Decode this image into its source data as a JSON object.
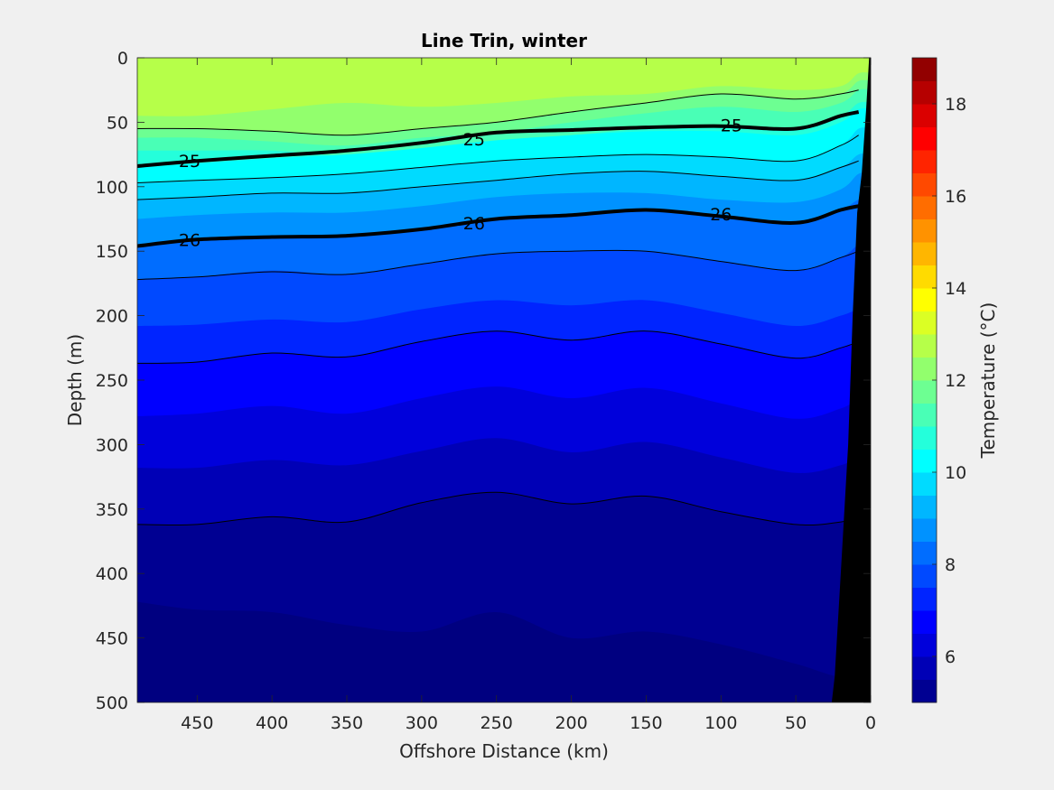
{
  "chart_data": {
    "type": "heatmap",
    "subtype": "filled-contour section",
    "title": "Line Trin, winter",
    "xlabel": "Offshore Distance (km)",
    "ylabel": "Depth (m)",
    "colorbar_label": "Temperature (°C)",
    "x_reversed": true,
    "y_reversed": true,
    "xlim": [
      490,
      0
    ],
    "ylim": [
      0,
      500
    ],
    "x_ticks": [
      450,
      400,
      350,
      300,
      250,
      200,
      150,
      100,
      50,
      0
    ],
    "y_ticks": [
      0,
      50,
      100,
      150,
      200,
      250,
      300,
      350,
      400,
      450,
      500
    ],
    "colorbar_range": [
      5,
      19
    ],
    "colorbar_ticks": [
      6,
      8,
      10,
      12,
      14,
      16,
      18
    ],
    "colormap": "jet",
    "color_levels": 28,
    "background_color": "#f0f0f0",
    "bathymetry_color": "#000000",
    "temperature_bands": [
      {
        "temp": 12.75,
        "x": [
          490,
          450,
          400,
          350,
          300,
          250,
          200,
          150,
          100,
          50,
          20,
          8
        ],
        "top": [
          0,
          0,
          0,
          0,
          0,
          0,
          0,
          0,
          0,
          0,
          0,
          0
        ]
      },
      {
        "temp": 12.25,
        "x": [
          490,
          450,
          400,
          350,
          300,
          250,
          200,
          150,
          100,
          50,
          20,
          8
        ],
        "top": [
          45,
          45,
          40,
          35,
          38,
          35,
          30,
          28,
          22,
          25,
          22,
          12
        ]
      },
      {
        "temp": 11.75,
        "x": [
          490,
          450,
          400,
          350,
          300,
          250,
          200,
          150,
          100,
          50,
          20,
          8
        ],
        "top": [
          55,
          55,
          57,
          60,
          55,
          50,
          42,
          35,
          28,
          32,
          28,
          18
        ]
      },
      {
        "temp": 11.25,
        "x": [
          490,
          450,
          400,
          350,
          300,
          250,
          200,
          150,
          100,
          50,
          20,
          8
        ],
        "top": [
          62,
          62,
          65,
          68,
          62,
          58,
          50,
          43,
          38,
          42,
          35,
          25
        ]
      },
      {
        "temp": 10.75,
        "x": [
          490,
          450,
          400,
          350,
          300,
          250,
          200,
          150,
          100,
          50,
          20,
          8
        ],
        "top": [
          72,
          72,
          72,
          76,
          70,
          66,
          60,
          55,
          52,
          55,
          45,
          35
        ]
      },
      {
        "temp": 10.25,
        "x": [
          490,
          450,
          400,
          350,
          300,
          250,
          200,
          150,
          100,
          50,
          20,
          8
        ],
        "top": [
          85,
          82,
          78,
          75,
          70,
          64,
          60,
          57,
          57,
          60,
          50,
          40
        ]
      },
      {
        "temp": 9.75,
        "x": [
          490,
          450,
          400,
          350,
          300,
          250,
          200,
          150,
          100,
          50,
          20,
          8
        ],
        "top": [
          97,
          95,
          93,
          90,
          85,
          80,
          77,
          75,
          77,
          80,
          68,
          55
        ]
      },
      {
        "temp": 9.25,
        "x": [
          490,
          450,
          400,
          350,
          300,
          250,
          200,
          150,
          100,
          50,
          20,
          8
        ],
        "top": [
          110,
          108,
          105,
          105,
          100,
          95,
          90,
          88,
          92,
          95,
          85,
          75
        ]
      },
      {
        "temp": 8.75,
        "x": [
          490,
          450,
          400,
          350,
          300,
          250,
          200,
          150,
          100,
          50,
          20,
          8
        ],
        "top": [
          125,
          122,
          120,
          120,
          115,
          108,
          105,
          105,
          110,
          112,
          102,
          90
        ]
      },
      {
        "temp": 8.25,
        "x": [
          490,
          450,
          400,
          350,
          300,
          250,
          200,
          150,
          100,
          50,
          20,
          8
        ],
        "top": [
          145,
          141,
          139,
          138,
          133,
          125,
          122,
          118,
          123,
          128,
          118,
          110
        ]
      },
      {
        "temp": 7.75,
        "x": [
          490,
          450,
          400,
          350,
          300,
          250,
          200,
          150,
          100,
          50,
          20,
          8
        ],
        "top": [
          172,
          170,
          165,
          168,
          160,
          152,
          150,
          150,
          158,
          165,
          155,
          145
        ]
      },
      {
        "temp": 7.25,
        "x": [
          490,
          450,
          400,
          350,
          300,
          250,
          200,
          150,
          100,
          50,
          20,
          8
        ],
        "top": [
          208,
          207,
          203,
          205,
          195,
          188,
          192,
          188,
          198,
          208,
          200,
          195
        ]
      },
      {
        "temp": 6.75,
        "x": [
          490,
          450,
          400,
          350,
          300,
          250,
          200,
          150,
          100,
          50,
          20,
          8
        ],
        "top": [
          237,
          236,
          229,
          232,
          220,
          212,
          219,
          212,
          222,
          233,
          225,
          220
        ]
      },
      {
        "temp": 6.25,
        "x": [
          490,
          450,
          400,
          350,
          300,
          250,
          200,
          150,
          100,
          50,
          20,
          8
        ],
        "top": [
          278,
          276,
          270,
          276,
          264,
          255,
          264,
          256,
          268,
          280,
          272,
          265
        ]
      },
      {
        "temp": 5.75,
        "x": [
          490,
          450,
          400,
          350,
          300,
          250,
          200,
          150,
          100,
          50,
          20,
          8
        ],
        "top": [
          318,
          318,
          312,
          316,
          305,
          295,
          306,
          298,
          310,
          322,
          316,
          310
        ]
      },
      {
        "temp": 5.25,
        "x": [
          490,
          450,
          400,
          350,
          300,
          250,
          200,
          150,
          100,
          50,
          20,
          8
        ],
        "top": [
          362,
          362,
          356,
          360,
          345,
          337,
          346,
          340,
          352,
          362,
          360,
          355
        ]
      },
      {
        "temp": 5.0,
        "x": [
          490,
          450,
          400,
          350,
          300,
          250,
          200,
          150,
          100,
          50,
          20,
          8
        ],
        "top": [
          422,
          428,
          430,
          440,
          445,
          430,
          450,
          445,
          455,
          470,
          480,
          470
        ]
      }
    ],
    "density_contours": [
      {
        "x": [
          490,
          450,
          400,
          350,
          300,
          250,
          200,
          150,
          100,
          50,
          20,
          8
        ],
        "depth": [
          55,
          55,
          57,
          60,
          55,
          50,
          42,
          35,
          28,
          32,
          28,
          25
        ],
        "bold": false
      },
      {
        "x": [
          490,
          450,
          400,
          350,
          300,
          250,
          200,
          150,
          100,
          50,
          20,
          8
        ],
        "depth": [
          84,
          80,
          76,
          72,
          66,
          58,
          56,
          54,
          53,
          55,
          45,
          42
        ],
        "bold": true
      },
      {
        "x": [
          490,
          450,
          400,
          350,
          300,
          250,
          200,
          150,
          100,
          50,
          20,
          8
        ],
        "depth": [
          97,
          95,
          93,
          90,
          85,
          80,
          77,
          75,
          77,
          80,
          68,
          60
        ],
        "bold": false
      },
      {
        "x": [
          490,
          450,
          400,
          350,
          300,
          250,
          200,
          150,
          100,
          50,
          20,
          8
        ],
        "depth": [
          110,
          108,
          105,
          105,
          100,
          95,
          90,
          88,
          92,
          95,
          85,
          80
        ],
        "bold": false
      },
      {
        "x": [
          490,
          450,
          400,
          350,
          300,
          250,
          200,
          150,
          100,
          50,
          20,
          8
        ],
        "depth": [
          146,
          141,
          139,
          138,
          133,
          125,
          122,
          118,
          123,
          128,
          118,
          115
        ],
        "bold": true
      },
      {
        "x": [
          490,
          450,
          400,
          350,
          300,
          250,
          200,
          150,
          100,
          50,
          20,
          8
        ],
        "depth": [
          172,
          170,
          166,
          168,
          160,
          152,
          150,
          150,
          158,
          165,
          155,
          150
        ],
        "bold": false
      },
      {
        "x": [
          490,
          450,
          400,
          350,
          300,
          250,
          200,
          150,
          100,
          50,
          20,
          8
        ],
        "depth": [
          237,
          236,
          229,
          232,
          220,
          212,
          219,
          212,
          222,
          233,
          225,
          220
        ],
        "bold": false
      },
      {
        "x": [
          490,
          450,
          400,
          350,
          300,
          250,
          200,
          150,
          100,
          50,
          20,
          8
        ],
        "depth": [
          362,
          362,
          356,
          360,
          345,
          337,
          346,
          340,
          352,
          362,
          360,
          355
        ],
        "bold": false
      }
    ],
    "contour_labels": [
      {
        "text": "25",
        "x": 455,
        "depth": 80
      },
      {
        "text": "25",
        "x": 265,
        "depth": 63
      },
      {
        "text": "25",
        "x": 93,
        "depth": 52
      },
      {
        "text": "26",
        "x": 455,
        "depth": 141
      },
      {
        "text": "26",
        "x": 265,
        "depth": 128
      },
      {
        "text": "26",
        "x": 100,
        "depth": 121
      }
    ],
    "bathymetry": {
      "x": [
        1,
        3,
        6,
        9,
        12,
        15,
        20,
        24,
        26
      ],
      "depth": [
        0,
        40,
        90,
        120,
        200,
        300,
        400,
        480,
        500
      ]
    }
  }
}
